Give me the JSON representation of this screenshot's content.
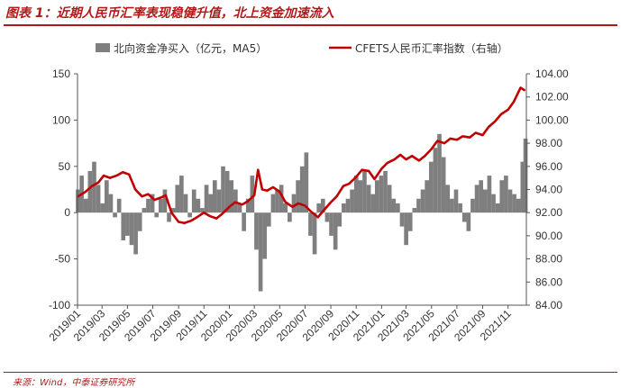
{
  "header": {
    "title": "图表 1：近期人民币汇率表现稳健升值，北上资金加速流入"
  },
  "footer": {
    "source": "来源：Wind，中泰证券研究所"
  },
  "colors": {
    "bars": "#7f7f7f",
    "line": "#c00000",
    "accent": "#b01a1a"
  },
  "chart_data": {
    "type": "bar+line",
    "title": "",
    "xlabel": "",
    "ylabel": "",
    "ylabel_right": "",
    "ylim": [
      -100,
      150
    ],
    "ylim_right": [
      84,
      104
    ],
    "yticks": [
      "150",
      "100",
      "50",
      "0",
      "-50",
      "-100"
    ],
    "yticks_right": [
      "104.00",
      "102.00",
      "100.00",
      "98.00",
      "96.00",
      "94.00",
      "92.00",
      "90.00",
      "88.00",
      "86.00",
      "84.00"
    ],
    "x_tick_labels": [
      "2019/01",
      "2019/03",
      "2019/05",
      "2019/07",
      "2019/09",
      "2019/11",
      "2020/01",
      "2020/03",
      "2020/05",
      "2020/07",
      "2020/09",
      "2020/11",
      "2021/01",
      "2021/03",
      "2021/05",
      "2021/07",
      "2021/09",
      "2021/11"
    ],
    "legend_position": "top",
    "grid": false,
    "x_range": [
      "2019-01-01",
      "2021-12-15"
    ],
    "series": [
      {
        "name": "北向资金净买入（亿元，MA5）",
        "type": "bar",
        "axis": "left",
        "points": [
          [
            "2019-01-02",
            25
          ],
          [
            "2019-01-11",
            40
          ],
          [
            "2019-01-21",
            15
          ],
          [
            "2019-01-31",
            45
          ],
          [
            "2019-02-10",
            55
          ],
          [
            "2019-02-20",
            30
          ],
          [
            "2019-03-02",
            10
          ],
          [
            "2019-03-12",
            35
          ],
          [
            "2019-03-22",
            20
          ],
          [
            "2019-04-01",
            -5
          ],
          [
            "2019-04-11",
            15
          ],
          [
            "2019-04-21",
            -30
          ],
          [
            "2019-05-01",
            -25
          ],
          [
            "2019-05-11",
            -35
          ],
          [
            "2019-05-21",
            -45
          ],
          [
            "2019-05-31",
            -20
          ],
          [
            "2019-06-10",
            5
          ],
          [
            "2019-06-20",
            15
          ],
          [
            "2019-06-30",
            20
          ],
          [
            "2019-07-10",
            -5
          ],
          [
            "2019-07-20",
            15
          ],
          [
            "2019-07-30",
            25
          ],
          [
            "2019-08-09",
            -10
          ],
          [
            "2019-08-19",
            5
          ],
          [
            "2019-08-29",
            30
          ],
          [
            "2019-09-08",
            40
          ],
          [
            "2019-09-18",
            20
          ],
          [
            "2019-09-28",
            -5
          ],
          [
            "2019-10-08",
            25
          ],
          [
            "2019-10-18",
            15
          ],
          [
            "2019-10-28",
            5
          ],
          [
            "2019-11-07",
            30
          ],
          [
            "2019-11-17",
            20
          ],
          [
            "2019-11-27",
            35
          ],
          [
            "2019-12-07",
            25
          ],
          [
            "2019-12-17",
            50
          ],
          [
            "2019-12-27",
            45
          ],
          [
            "2020-01-06",
            35
          ],
          [
            "2020-01-16",
            25
          ],
          [
            "2020-01-26",
            10
          ],
          [
            "2020-02-05",
            -20
          ],
          [
            "2020-02-15",
            15
          ],
          [
            "2020-02-25",
            40
          ],
          [
            "2020-03-06",
            -40
          ],
          [
            "2020-03-16",
            -85
          ],
          [
            "2020-03-26",
            -50
          ],
          [
            "2020-04-05",
            -15
          ],
          [
            "2020-04-15",
            20
          ],
          [
            "2020-04-25",
            25
          ],
          [
            "2020-05-05",
            30
          ],
          [
            "2020-05-15",
            10
          ],
          [
            "2020-05-25",
            -10
          ],
          [
            "2020-06-04",
            20
          ],
          [
            "2020-06-14",
            35
          ],
          [
            "2020-06-24",
            50
          ],
          [
            "2020-07-04",
            65
          ],
          [
            "2020-07-14",
            -25
          ],
          [
            "2020-07-24",
            -45
          ],
          [
            "2020-08-03",
            10
          ],
          [
            "2020-08-13",
            15
          ],
          [
            "2020-08-23",
            -10
          ],
          [
            "2020-09-02",
            -25
          ],
          [
            "2020-09-12",
            -40
          ],
          [
            "2020-09-22",
            -15
          ],
          [
            "2020-10-02",
            10
          ],
          [
            "2020-10-12",
            15
          ],
          [
            "2020-10-22",
            25
          ],
          [
            "2020-11-01",
            40
          ],
          [
            "2020-11-11",
            35
          ],
          [
            "2020-11-21",
            45
          ],
          [
            "2020-12-01",
            30
          ],
          [
            "2020-12-11",
            20
          ],
          [
            "2020-12-21",
            35
          ],
          [
            "2020-12-31",
            40
          ],
          [
            "2021-01-10",
            45
          ],
          [
            "2021-01-20",
            30
          ],
          [
            "2021-01-30",
            15
          ],
          [
            "2021-02-09",
            10
          ],
          [
            "2021-02-19",
            -15
          ],
          [
            "2021-03-01",
            -35
          ],
          [
            "2021-03-11",
            -20
          ],
          [
            "2021-03-21",
            5
          ],
          [
            "2021-03-31",
            15
          ],
          [
            "2021-04-10",
            25
          ],
          [
            "2021-04-20",
            35
          ],
          [
            "2021-04-30",
            55
          ],
          [
            "2021-05-10",
            70
          ],
          [
            "2021-05-20",
            85
          ],
          [
            "2021-05-30",
            60
          ],
          [
            "2021-06-09",
            30
          ],
          [
            "2021-06-19",
            15
          ],
          [
            "2021-06-29",
            25
          ],
          [
            "2021-07-09",
            10
          ],
          [
            "2021-07-19",
            -10
          ],
          [
            "2021-07-29",
            -20
          ],
          [
            "2021-08-08",
            15
          ],
          [
            "2021-08-18",
            30
          ],
          [
            "2021-08-28",
            35
          ],
          [
            "2021-09-07",
            25
          ],
          [
            "2021-09-17",
            40
          ],
          [
            "2021-09-27",
            20
          ],
          [
            "2021-10-07",
            10
          ],
          [
            "2021-10-17",
            35
          ],
          [
            "2021-10-27",
            40
          ],
          [
            "2021-11-06",
            25
          ],
          [
            "2021-11-16",
            20
          ],
          [
            "2021-11-26",
            15
          ],
          [
            "2021-12-06",
            55
          ],
          [
            "2021-12-13",
            80
          ]
        ]
      },
      {
        "name": "CFETS人民币汇率指数（右轴）",
        "type": "line",
        "axis": "right",
        "points": [
          [
            "2019-01-02",
            93.4
          ],
          [
            "2019-01-20",
            93.8
          ],
          [
            "2019-02-05",
            94.3
          ],
          [
            "2019-02-20",
            94.6
          ],
          [
            "2019-03-05",
            95.2
          ],
          [
            "2019-03-20",
            95.0
          ],
          [
            "2019-04-05",
            95.2
          ],
          [
            "2019-04-20",
            95.5
          ],
          [
            "2019-05-05",
            95.3
          ],
          [
            "2019-05-20",
            94.0
          ],
          [
            "2019-06-05",
            93.4
          ],
          [
            "2019-06-20",
            93.6
          ],
          [
            "2019-07-05",
            93.1
          ],
          [
            "2019-07-20",
            93.3
          ],
          [
            "2019-08-01",
            93.5
          ],
          [
            "2019-08-15",
            92.0
          ],
          [
            "2019-09-01",
            91.2
          ],
          [
            "2019-09-15",
            91.1
          ],
          [
            "2019-10-01",
            91.3
          ],
          [
            "2019-10-15",
            91.6
          ],
          [
            "2019-11-01",
            92.0
          ],
          [
            "2019-11-15",
            91.7
          ],
          [
            "2019-12-01",
            91.5
          ],
          [
            "2019-12-15",
            91.9
          ],
          [
            "2020-01-01",
            92.5
          ],
          [
            "2020-01-15",
            92.9
          ],
          [
            "2020-02-01",
            92.7
          ],
          [
            "2020-02-15",
            93.0
          ],
          [
            "2020-03-01",
            93.5
          ],
          [
            "2020-03-10",
            95.7
          ],
          [
            "2020-03-20",
            94.0
          ],
          [
            "2020-04-01",
            93.9
          ],
          [
            "2020-04-15",
            94.2
          ],
          [
            "2020-05-01",
            93.8
          ],
          [
            "2020-05-15",
            92.9
          ],
          [
            "2020-06-01",
            92.5
          ],
          [
            "2020-06-15",
            92.8
          ],
          [
            "2020-07-01",
            92.6
          ],
          [
            "2020-07-15",
            92.1
          ],
          [
            "2020-08-01",
            91.6
          ],
          [
            "2020-08-15",
            92.2
          ],
          [
            "2020-09-01",
            92.9
          ],
          [
            "2020-09-15",
            93.4
          ],
          [
            "2020-10-01",
            94.3
          ],
          [
            "2020-10-15",
            94.5
          ],
          [
            "2020-11-01",
            95.1
          ],
          [
            "2020-11-15",
            95.7
          ],
          [
            "2020-12-01",
            95.6
          ],
          [
            "2020-12-15",
            94.9
          ],
          [
            "2021-01-01",
            95.8
          ],
          [
            "2021-01-15",
            96.3
          ],
          [
            "2021-02-01",
            96.6
          ],
          [
            "2021-02-15",
            97.0
          ],
          [
            "2021-03-01",
            96.6
          ],
          [
            "2021-03-15",
            96.9
          ],
          [
            "2021-04-01",
            96.5
          ],
          [
            "2021-04-15",
            96.9
          ],
          [
            "2021-05-01",
            97.5
          ],
          [
            "2021-05-15",
            98.2
          ],
          [
            "2021-06-01",
            98.0
          ],
          [
            "2021-06-15",
            98.4
          ],
          [
            "2021-07-01",
            98.3
          ],
          [
            "2021-07-15",
            98.6
          ],
          [
            "2021-08-01",
            98.5
          ],
          [
            "2021-08-15",
            98.9
          ],
          [
            "2021-09-01",
            98.7
          ],
          [
            "2021-09-15",
            99.4
          ],
          [
            "2021-10-01",
            99.9
          ],
          [
            "2021-10-15",
            100.5
          ],
          [
            "2021-11-01",
            100.9
          ],
          [
            "2021-11-15",
            101.6
          ],
          [
            "2021-12-01",
            102.8
          ],
          [
            "2021-12-10",
            102.6
          ]
        ]
      }
    ]
  }
}
